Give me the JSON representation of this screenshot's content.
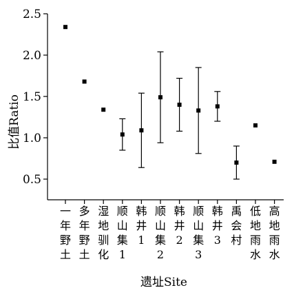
{
  "chart_data": {
    "type": "scatter",
    "title": "",
    "xlabel": "遗址Site",
    "ylabel": "比值Ratio",
    "ylim": [
      0.25,
      2.5
    ],
    "yticks": [
      {
        "value": 0.5,
        "label": "0.5"
      },
      {
        "value": 1.0,
        "label": "1.0"
      },
      {
        "value": 1.5,
        "label": "1.5"
      },
      {
        "value": 2.0,
        "label": "2.0"
      },
      {
        "value": 2.5,
        "label": "2.5"
      }
    ],
    "grid": false,
    "categories": [
      "一年野土",
      "多年野土",
      "湿地驯化",
      "顺山集1",
      "韩井1",
      "顺山集2",
      "韩井2",
      "顺山集3",
      "韩井3",
      "禹会村",
      "低地雨水",
      "高地雨水"
    ],
    "values": [
      2.34,
      1.68,
      1.34,
      1.04,
      1.09,
      1.49,
      1.4,
      1.33,
      1.38,
      0.7,
      1.15,
      0.71
    ],
    "error_low": [
      null,
      null,
      null,
      0.85,
      0.64,
      0.94,
      1.08,
      0.81,
      1.2,
      0.5,
      null,
      null
    ],
    "error_high": [
      null,
      null,
      null,
      1.23,
      1.54,
      2.04,
      1.72,
      1.85,
      1.56,
      0.9,
      null,
      null
    ]
  }
}
